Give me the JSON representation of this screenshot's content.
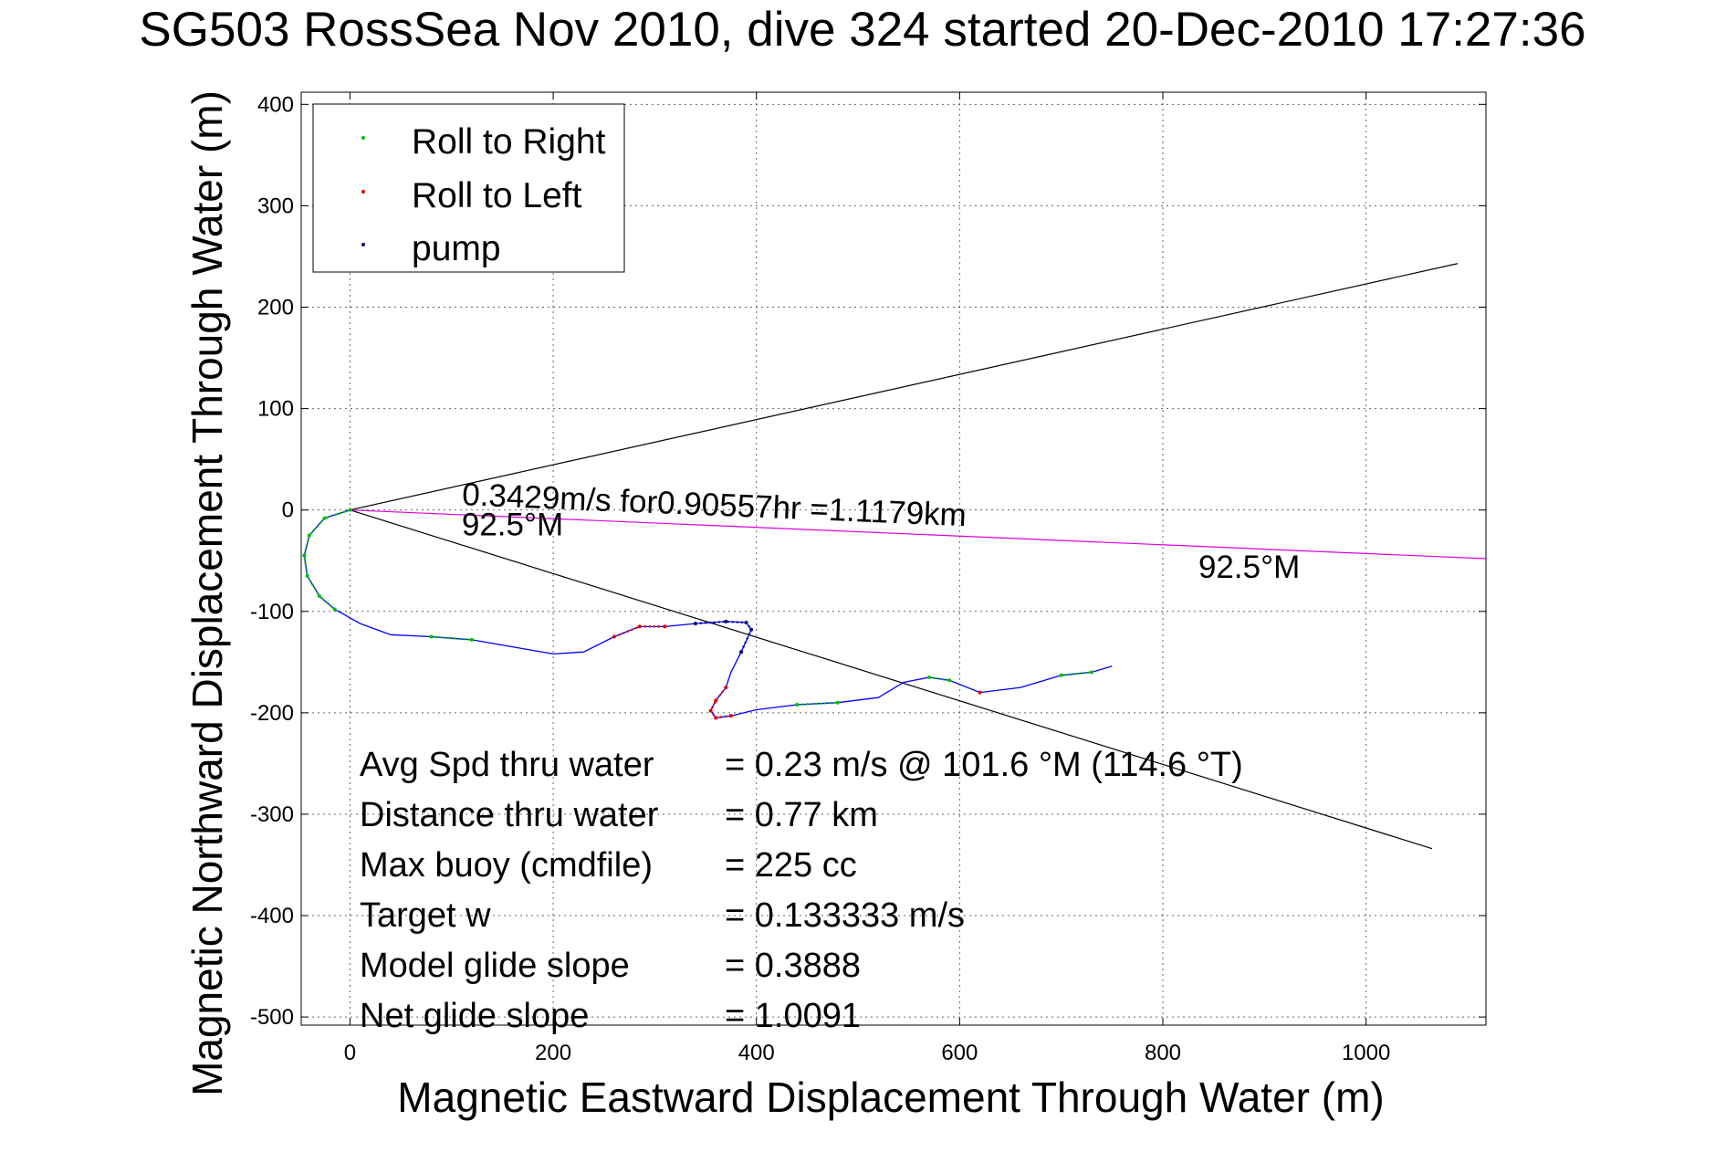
{
  "chart_data": {
    "type": "line",
    "title": "SG503 RossSea Nov 2010, dive 324 started 20-Dec-2010 17:27:36",
    "xlabel": "Magnetic Eastward Displacement Through Water (m)",
    "ylabel": "Magnetic Northward Displacement Through Water (m)",
    "xlim": [
      -48,
      1118
    ],
    "ylim": [
      -508,
      412
    ],
    "xticks": [
      0,
      200,
      400,
      600,
      800,
      1000
    ],
    "yticks": [
      400,
      300,
      200,
      100,
      0,
      -100,
      -200,
      -300,
      -400,
      -500
    ],
    "grid": true,
    "legend": {
      "position": "top-left",
      "entries": [
        {
          "label": "Roll to Right",
          "color": "#00c000"
        },
        {
          "label": "Roll to Left",
          "color": "#e00000"
        },
        {
          "label": "pump",
          "color": "#000080"
        }
      ]
    },
    "series": [
      {
        "name": "track",
        "color": "#0000ff",
        "x": [
          0,
          -25,
          -40,
          -45,
          -42,
          -30,
          -15,
          10,
          40,
          80,
          120,
          160,
          200,
          230,
          260,
          285,
          310,
          340,
          370,
          390,
          395,
          385,
          375,
          370,
          360,
          355,
          360,
          375,
          400,
          440,
          480,
          520,
          545,
          570,
          590,
          620,
          660,
          700,
          730,
          750
        ],
        "y": [
          0,
          -8,
          -25,
          -45,
          -65,
          -85,
          -98,
          -112,
          -123,
          -125,
          -128,
          -135,
          -142,
          -140,
          -125,
          -115,
          -115,
          -112,
          -110,
          -111,
          -118,
          -140,
          -160,
          -175,
          -188,
          -198,
          -205,
          -203,
          -197,
          -192,
          -190,
          -185,
          -170,
          -165,
          -168,
          -180,
          -175,
          -163,
          -160,
          -154
        ]
      },
      {
        "name": "Roll to Right",
        "color": "#00c000",
        "ranges": [
          [
            0,
            6
          ],
          [
            9,
            10
          ],
          [
            29,
            30
          ],
          [
            33,
            34
          ],
          [
            37,
            38
          ]
        ]
      },
      {
        "name": "Roll to Left",
        "color": "#e00000",
        "ranges": [
          [
            14,
            16
          ],
          [
            23,
            27
          ],
          [
            35,
            35
          ]
        ]
      },
      {
        "name": "pump",
        "color": "#000080",
        "ranges": [
          [
            17,
            21
          ]
        ]
      }
    ],
    "reference_lines": [
      {
        "name": "upper-bound",
        "color": "#000000",
        "x": [
          0,
          1090
        ],
        "y": [
          0,
          243
        ]
      },
      {
        "name": "lower-bound",
        "color": "#000000",
        "x": [
          0,
          1065
        ],
        "y": [
          0,
          -334
        ]
      },
      {
        "name": "heading-line",
        "color": "#e000e0",
        "x": [
          0,
          1118
        ],
        "y": [
          0,
          -48
        ]
      }
    ],
    "annotations": [
      {
        "name": "speed-annotation",
        "text": "0.3429m/s for0.90557hr =1.1179km",
        "x": 110,
        "y": 5
      },
      {
        "name": "heading-annotation-left",
        "text": "92.5°M",
        "x": 110,
        "y": -25
      },
      {
        "name": "heading-annotation-right",
        "text": "92.5°M",
        "x": 835,
        "y": -67
      }
    ],
    "stats": [
      {
        "label": "Avg Spd thru water",
        "value": "=  0.23 m/s @ 101.6 °M (114.6 °T)"
      },
      {
        "label": "Distance thru water",
        "value": "=  0.77 km"
      },
      {
        "label": "Max buoy (cmdfile)",
        "value": "= 225 cc"
      },
      {
        "label": "Target w",
        "value": "= 0.133333 m/s"
      },
      {
        "label": "Model glide slope",
        "value": "= 0.3888"
      },
      {
        "label": "Net glide slope",
        "value": "= 1.0091"
      }
    ]
  }
}
